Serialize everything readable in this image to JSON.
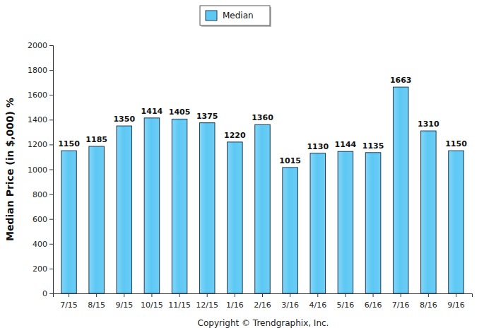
{
  "chart_data": {
    "type": "bar",
    "y_label": "Median Price (in $,000) %",
    "annotations": [
      "Copyright © Trendgraphix, Inc."
    ],
    "categories": [
      "7/15",
      "8/15",
      "9/15",
      "10/15",
      "11/15",
      "12/15",
      "1/16",
      "2/16",
      "3/16",
      "4/16",
      "5/16",
      "6/16",
      "7/16",
      "8/16",
      "9/16"
    ],
    "series": [
      {
        "name": "Median",
        "color": "#5cc8f4",
        "values": [
          1150,
          1185,
          1350,
          1414,
          1405,
          1375,
          1220,
          1360,
          1015,
          1130,
          1144,
          1135,
          1663,
          1310,
          1150
        ]
      }
    ],
    "ylim": [
      0,
      2000
    ],
    "yticks": [
      0,
      200,
      400,
      600,
      800,
      1000,
      1200,
      1400,
      1600,
      1800,
      2000
    ],
    "grid": false,
    "legend": "top",
    "data_labels": true
  }
}
